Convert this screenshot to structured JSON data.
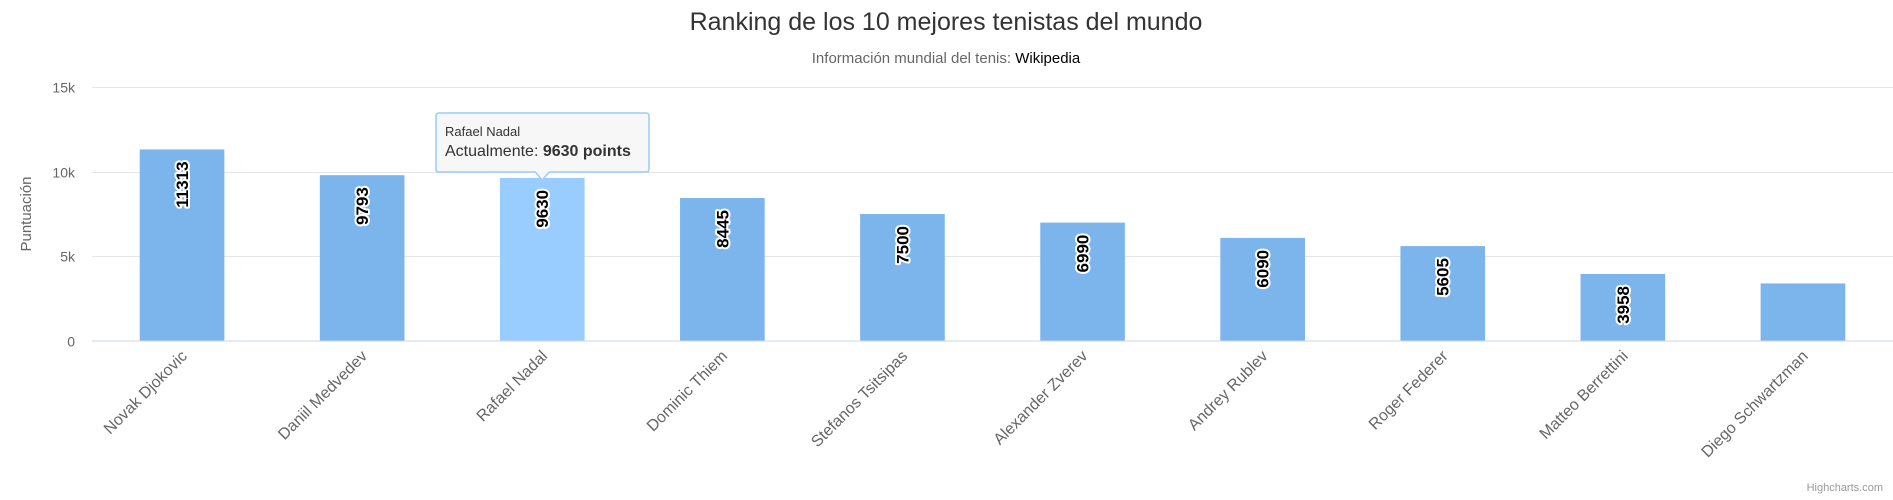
{
  "header": {
    "title": "Ranking de los 10 mejores tenistas del mundo",
    "subtitle_prefix": "Información mundial del tenis: ",
    "subtitle_link": "Wikipedia"
  },
  "credits": "Highcharts.com",
  "tooltip": {
    "category": "Rafael Nadal",
    "series_label": "Actualmente: ",
    "value_text": "9630 points"
  },
  "colors": {
    "bar": "#7cb5ec",
    "bar_hover": "#99ccff",
    "grid": "#e6e6e6",
    "axis": "#ccd6eb"
  },
  "chart_data": {
    "type": "bar",
    "title": "Ranking de los 10 mejores tenistas del mundo",
    "subtitle": "Información mundial del tenis: Wikipedia",
    "xlabel": "",
    "ylabel": "Puntuación",
    "ylim": [
      0,
      15000
    ],
    "yticks": [
      0,
      5000,
      10000,
      15000
    ],
    "ytick_labels": [
      "0",
      "5k",
      "10k",
      "15k"
    ],
    "grid": true,
    "legend": "none",
    "categories": [
      "Novak Djokovic",
      "Daniil Medvedev",
      "Rafael Nadal",
      "Dominic Thiem",
      "Stefanos Tsitsipas",
      "Alexander Zverev",
      "Andrey Rublev",
      "Roger Federer",
      "Matteo Berrettini",
      "Diego Schwartzman"
    ],
    "series": [
      {
        "name": "Actualmente",
        "values": [
          11313,
          9793,
          9630,
          8445,
          7500,
          6990,
          6090,
          5605,
          3958,
          3400
        ],
        "data_labels": [
          "11313",
          "9793",
          "9630",
          "8445",
          "7500",
          "6990",
          "6090",
          "5605",
          "3958",
          ""
        ]
      }
    ],
    "highlighted_index": 2
  }
}
